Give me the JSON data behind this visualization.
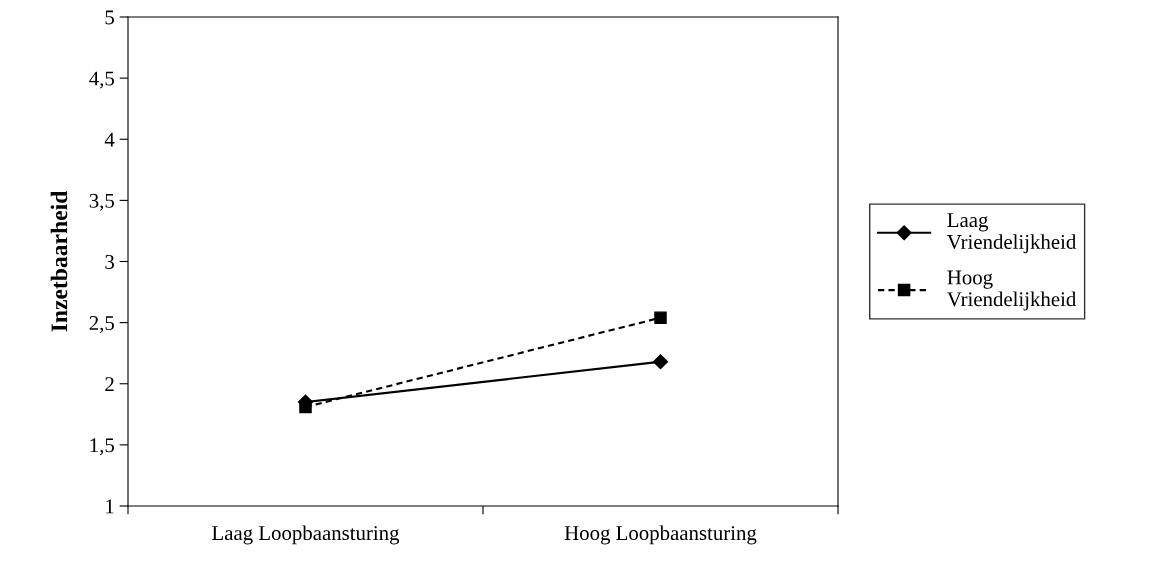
{
  "chart_data": {
    "type": "line",
    "ylabel": "Inzetbaarheid",
    "categories": [
      "Laag Loopbaansturing",
      "Hoog Loopbaansturing"
    ],
    "series": [
      {
        "name": "Laag\nVriendelijkheid",
        "color": "#000000",
        "values": [
          1.85,
          2.18
        ],
        "marker": "diamond",
        "line_style": "solid"
      },
      {
        "name": "Hoog\nVriendelijkheid",
        "color": "#000000",
        "values": [
          1.81,
          2.54
        ],
        "marker": "square",
        "line_style": "dashed"
      }
    ],
    "ylim": [
      1,
      5
    ],
    "yticks": [
      1,
      {
        "value": 1.5,
        "label": "1,5"
      },
      2,
      {
        "value": 2.5,
        "label": "2,5"
      },
      3,
      {
        "value": 3.5,
        "label": "3,5"
      },
      4,
      {
        "value": 4.5,
        "label": "4,5"
      },
      5
    ],
    "grid": false,
    "legend": "right"
  }
}
